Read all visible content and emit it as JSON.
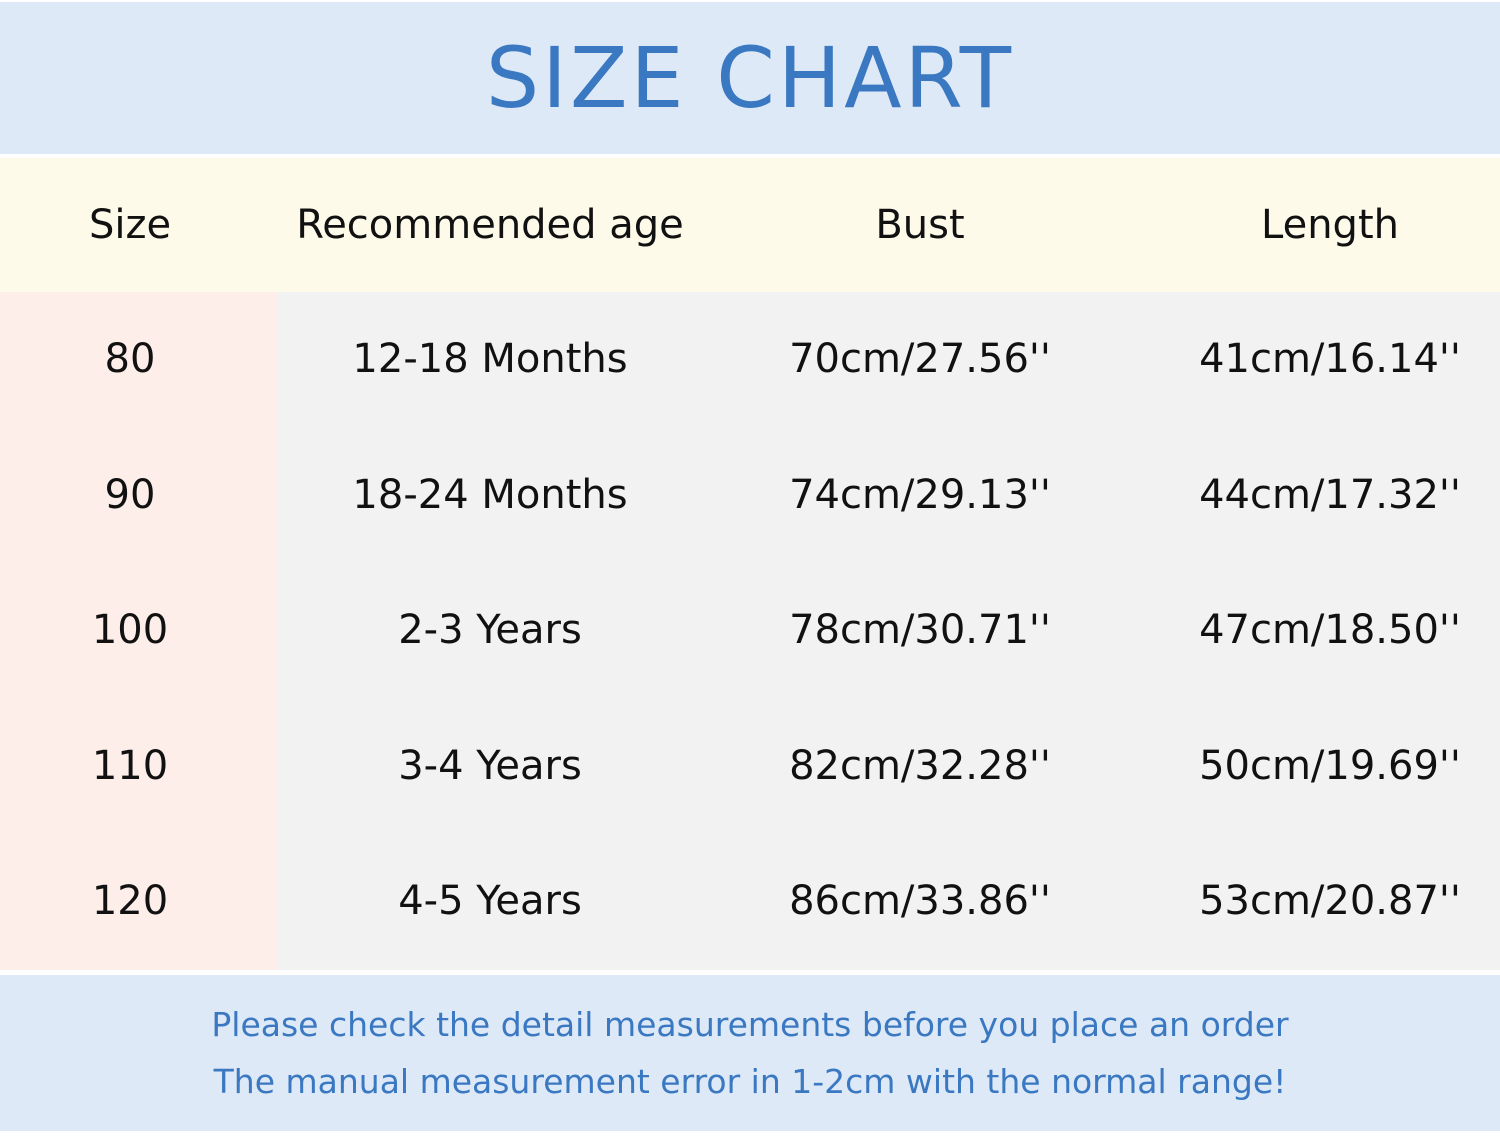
{
  "title": "SIZE CHART",
  "colors": {
    "title": "#3a78c2",
    "title_band": "#dde9f7",
    "header_bg": "#fefaea",
    "size_col_bg": "#fdeeea",
    "rows_bg": "#f2f2f2"
  },
  "columns": [
    "Size",
    "Recommended age",
    "Bust",
    "Length"
  ],
  "rows": [
    [
      "80",
      "12-18 Months",
      "70cm/27.56''",
      "41cm/16.14''"
    ],
    [
      "90",
      "18-24 Months",
      "74cm/29.13''",
      "44cm/17.32''"
    ],
    [
      "100",
      "2-3 Years",
      "78cm/30.71''",
      "47cm/18.50''"
    ],
    [
      "110",
      "3-4 Years",
      "82cm/32.28''",
      "50cm/19.69''"
    ],
    [
      "120",
      "4-5 Years",
      "86cm/33.86''",
      "53cm/20.87''"
    ]
  ],
  "footer": [
    "Please check the detail measurements before you place an order",
    "The manual measurement error in 1-2cm with the normal range!"
  ]
}
